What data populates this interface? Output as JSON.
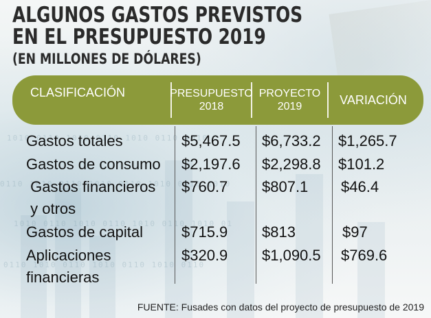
{
  "title_line1": "ALGUNOS GASTOS PREVISTOS",
  "title_line2": "EN EL PRESUPUESTO 2019",
  "subtitle": "(EN MILLONES DE DÓLARES)",
  "header": {
    "classification": "CLASIFICACIÓN",
    "budget_2018_line1": "PRESUPUESTO",
    "budget_2018_line2": "2018",
    "project_2019_line1": "PROYECTO",
    "project_2019_line2": "2019",
    "variation": "VARIACIÓN"
  },
  "rows": [
    {
      "label_line1": "Gastos totales",
      "label_line2": "",
      "budget_2018": "$5,467.5",
      "project_2019": "$6,733.2",
      "variation": "$1,265.7"
    },
    {
      "label_line1": "Gastos de consumo",
      "label_line2": "",
      "budget_2018": "$2,197.6",
      "project_2019": "$2,298.8",
      "variation": "$101.2"
    },
    {
      "label_line1": " Gastos financieros",
      "label_line2": " y otros",
      "budget_2018": "$760.7",
      "project_2019": "$807.1",
      "variation": "$46.4"
    },
    {
      "label_line1": "Gastos de capital",
      "label_line2": "",
      "budget_2018": "$715.9",
      "project_2019": "$813",
      "variation": "$97"
    },
    {
      "label_line1": "Aplicaciones",
      "label_line2": "financieras",
      "budget_2018": "$320.9",
      "project_2019": "$1,090.5",
      "variation": "$769.6"
    }
  ],
  "source": "FUENTE: Fusades con datos del proyecto de presupuesto de 2019",
  "colors": {
    "header_band": "#8c9a3a",
    "text": "#111111"
  }
}
